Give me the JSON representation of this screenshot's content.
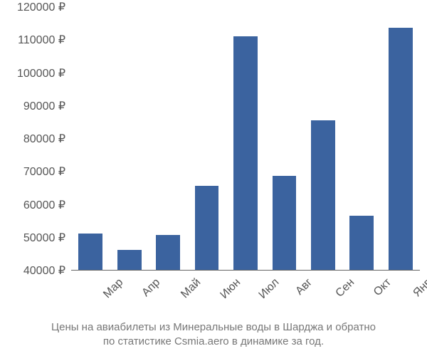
{
  "chart": {
    "type": "bar",
    "background_color": "#ffffff",
    "bar_color": "#3b639f",
    "axis_color": "#666666",
    "label_color": "#555555",
    "caption_color": "#777777",
    "label_fontsize": 16,
    "tick_fontsize": 16,
    "caption_fontsize": 15,
    "y": {
      "min": 40000,
      "max": 120000,
      "step": 10000,
      "suffix": " ₽",
      "ticks": [
        "40000 ₽",
        "50000 ₽",
        "60000 ₽",
        "70000 ₽",
        "80000 ₽",
        "90000 ₽",
        "100000 ₽",
        "110000 ₽",
        "120000 ₽"
      ]
    },
    "categories": [
      "Мар",
      "Апр",
      "Май",
      "Июн",
      "Июл",
      "Авг",
      "Сен",
      "Окт",
      "Янв"
    ],
    "values": [
      51000,
      46000,
      50500,
      65500,
      111000,
      68500,
      85500,
      56500,
      113500
    ],
    "bar_width_ratio": 0.62,
    "caption_line1": "Цены на авиабилеты из Минеральные воды в Шарджа и обратно",
    "caption_line2": "по статистике Csmia.aero в динамике за год."
  }
}
